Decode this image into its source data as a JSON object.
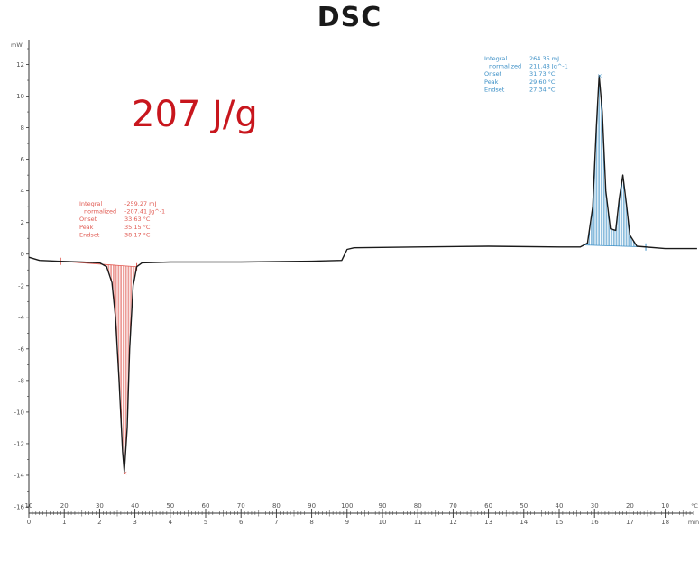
{
  "title": "DSC",
  "annotation_big": "207 J/g",
  "chart_data": {
    "type": "line",
    "title": "DSC",
    "ylabel": "mW",
    "ylim": [
      -16,
      13
    ],
    "y_ticks": [
      12,
      10,
      8,
      6,
      4,
      2,
      0,
      -2,
      -4,
      -6,
      -8,
      -10,
      -12,
      -14,
      -16
    ],
    "x_temp_unit": "°C",
    "x_temp_ticks": [
      "10",
      "20",
      "30",
      "40",
      "50",
      "60",
      "70",
      "80",
      "90",
      "100",
      "90",
      "80",
      "70",
      "60",
      "50",
      "40",
      "30",
      "20",
      "10"
    ],
    "x_time_unit": "min",
    "x_time_ticks": [
      "0",
      "1",
      "2",
      "3",
      "4",
      "5",
      "6",
      "7",
      "8",
      "9",
      "10",
      "11",
      "12",
      "13",
      "14",
      "15",
      "16",
      "17",
      "18"
    ],
    "xlim_min": [
      0,
      19
    ],
    "series": [
      {
        "values": [
          [
            0,
            -0.2
          ],
          [
            0.3,
            -0.4
          ],
          [
            0.8,
            -0.45
          ],
          [
            1.5,
            -0.5
          ],
          [
            2.0,
            -0.55
          ],
          [
            2.2,
            -0.8
          ],
          [
            2.35,
            -1.8
          ],
          [
            2.45,
            -4
          ],
          [
            2.55,
            -8
          ],
          [
            2.65,
            -12.5
          ],
          [
            2.7,
            -13.8
          ],
          [
            2.78,
            -11
          ],
          [
            2.85,
            -6
          ],
          [
            2.95,
            -2
          ],
          [
            3.05,
            -0.8
          ],
          [
            3.2,
            -0.55
          ],
          [
            4,
            -0.5
          ],
          [
            6,
            -0.5
          ],
          [
            8,
            -0.45
          ],
          [
            8.85,
            -0.4
          ],
          [
            9.0,
            0.3
          ],
          [
            9.2,
            0.4
          ],
          [
            11,
            0.45
          ],
          [
            13,
            0.5
          ],
          [
            15,
            0.45
          ],
          [
            15.6,
            0.45
          ],
          [
            15.8,
            0.7
          ],
          [
            15.95,
            3
          ],
          [
            16.05,
            8
          ],
          [
            16.13,
            11.3
          ],
          [
            16.22,
            9
          ],
          [
            16.32,
            4
          ],
          [
            16.45,
            1.6
          ],
          [
            16.6,
            1.5
          ],
          [
            16.7,
            3.5
          ],
          [
            16.8,
            5.0
          ],
          [
            16.9,
            3.2
          ],
          [
            17.0,
            1.2
          ],
          [
            17.2,
            0.5
          ],
          [
            18,
            0.35
          ],
          [
            18.9,
            0.35
          ]
        ]
      }
    ],
    "annotations": [
      {
        "color": "#e05a52",
        "lines": [
          [
            "Integral",
            "-259.27 mJ"
          ],
          [
            "normalized",
            "-207.41 Jg^-1"
          ],
          [
            "Onset",
            "33.63 °C"
          ],
          [
            "Peak",
            "35.15 °C"
          ],
          [
            "Endset",
            "38.17 °C"
          ]
        ],
        "range_min": [
          0.9,
          3.05
        ]
      },
      {
        "color": "#3b8fc6",
        "lines": [
          [
            "Integral",
            "264.35 mJ"
          ],
          [
            "normalized",
            "211.48 Jg^-1"
          ],
          [
            "Onset",
            "31.73 °C"
          ],
          [
            "Peak",
            "29.60 °C"
          ],
          [
            "Endset",
            "27.34 °C"
          ]
        ],
        "range_min": [
          15.7,
          17.45
        ]
      }
    ],
    "grid": false
  }
}
